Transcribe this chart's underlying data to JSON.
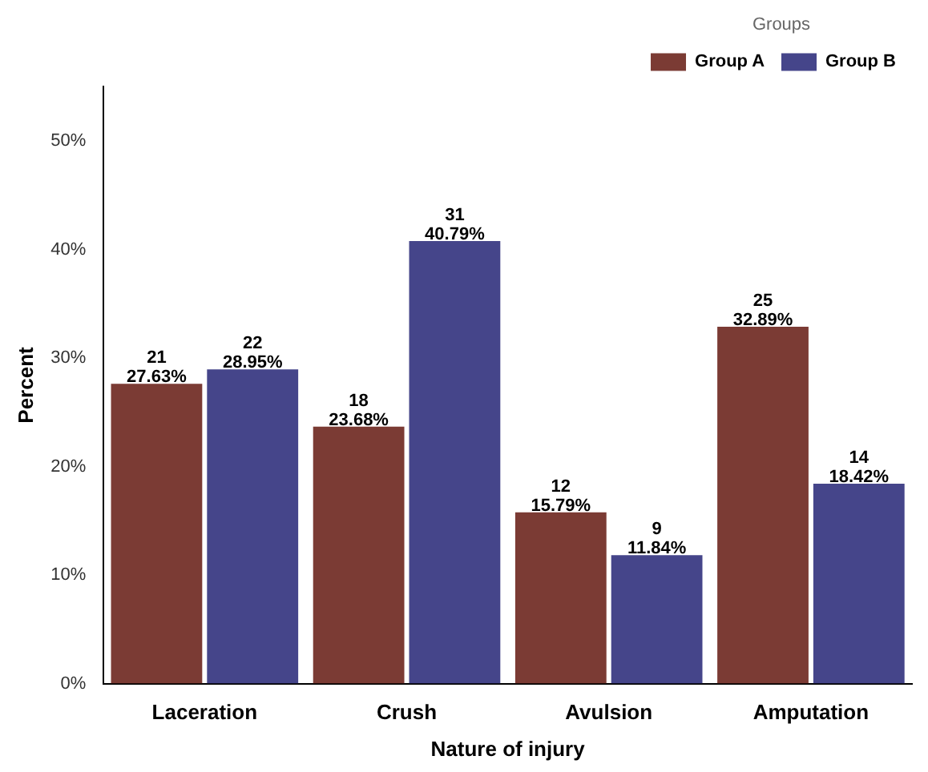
{
  "chart_data": {
    "type": "bar",
    "xlabel": "Nature of injury",
    "ylabel": "Percent",
    "legend_title": "Groups",
    "legend": "top right",
    "grid": false,
    "categories": [
      "Laceration",
      "Crush",
      "Avulsion",
      "Amputation"
    ],
    "series": [
      {
        "name": "Group A",
        "color": "#7b3b34",
        "values": [
          27.63,
          23.68,
          15.79,
          32.89
        ],
        "value_labels": [
          "21\n27.63%",
          "18\n23.68%",
          "12\n15.79%",
          "25\n32.89%"
        ]
      },
      {
        "name": "Group B",
        "color": "#45458a",
        "values": [
          28.95,
          40.79,
          11.84,
          18.42
        ],
        "value_labels": [
          "22\n28.95%",
          "31\n40.79%",
          "9\n11.84%",
          "14\n18.42%"
        ]
      }
    ],
    "ylim": [
      0,
      55
    ],
    "yticks": [
      {
        "value": 0,
        "label": "0%"
      },
      {
        "value": 10,
        "label": "10%"
      },
      {
        "value": 20,
        "label": "20%"
      },
      {
        "value": 30,
        "label": "30%"
      },
      {
        "value": 40,
        "label": "40%"
      },
      {
        "value": 50,
        "label": "50%"
      }
    ]
  }
}
